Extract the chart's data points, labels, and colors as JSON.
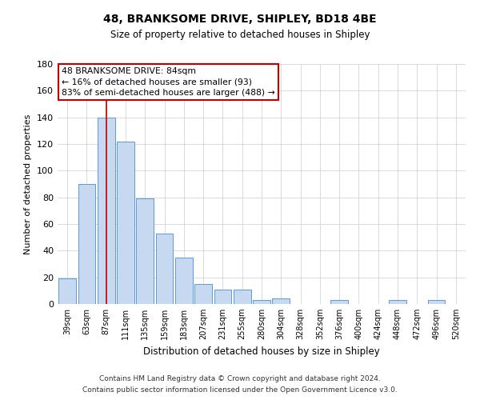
{
  "title": "48, BRANKSOME DRIVE, SHIPLEY, BD18 4BE",
  "subtitle": "Size of property relative to detached houses in Shipley",
  "xlabel": "Distribution of detached houses by size in Shipley",
  "ylabel": "Number of detached properties",
  "bar_labels": [
    "39sqm",
    "63sqm",
    "87sqm",
    "111sqm",
    "135sqm",
    "159sqm",
    "183sqm",
    "207sqm",
    "231sqm",
    "255sqm",
    "280sqm",
    "304sqm",
    "328sqm",
    "352sqm",
    "376sqm",
    "400sqm",
    "424sqm",
    "448sqm",
    "472sqm",
    "496sqm",
    "520sqm"
  ],
  "bar_values": [
    19,
    90,
    140,
    122,
    79,
    53,
    35,
    15,
    11,
    11,
    3,
    4,
    0,
    0,
    3,
    0,
    0,
    3,
    0,
    3,
    0
  ],
  "bar_color": "#c6d9f0",
  "bar_edge_color": "#5b9bd5",
  "highlight_index": 2,
  "highlight_line_color": "#c00000",
  "ylim": [
    0,
    180
  ],
  "yticks": [
    0,
    20,
    40,
    60,
    80,
    100,
    120,
    140,
    160,
    180
  ],
  "annotation_title": "48 BRANKSOME DRIVE: 84sqm",
  "annotation_line1": "← 16% of detached houses are smaller (93)",
  "annotation_line2": "83% of semi-detached houses are larger (488) →",
  "annotation_box_color": "#ffffff",
  "annotation_box_edge": "#c00000",
  "footer_line1": "Contains HM Land Registry data © Crown copyright and database right 2024.",
  "footer_line2": "Contains public sector information licensed under the Open Government Licence v3.0.",
  "background_color": "#ffffff",
  "grid_color": "#cccccc"
}
